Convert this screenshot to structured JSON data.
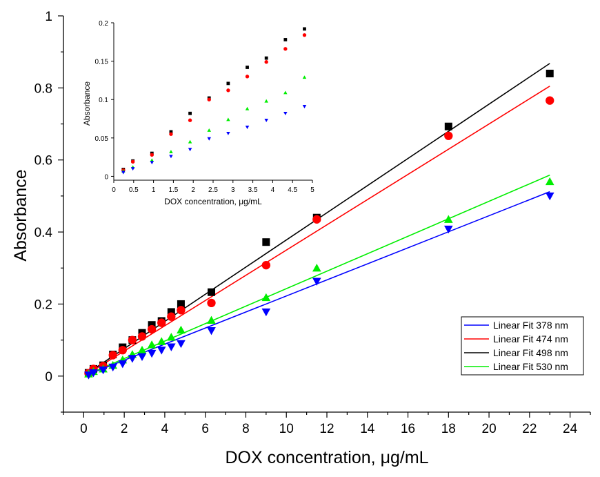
{
  "chart_data": [
    {
      "id": "main",
      "type": "scatter",
      "title": "",
      "xlabel": "DOX concentration, μg/mL",
      "ylabel": "Absorbance",
      "xlim": [
        -1,
        25
      ],
      "ylim": [
        -0.1,
        1.0
      ],
      "xticks": [
        0,
        2,
        4,
        6,
        8,
        10,
        12,
        14,
        16,
        18,
        20,
        22,
        24
      ],
      "xtick_labels": [
        "0",
        "2",
        "4",
        "6",
        "8",
        "10",
        "12",
        "14",
        "16",
        "18",
        "20",
        "22",
        "24"
      ],
      "yticks": [
        0,
        0.2,
        0.4,
        0.6,
        0.8,
        1.0
      ],
      "ytick_labels": [
        "0",
        "0.2",
        "0.4",
        "0.6",
        "0.8",
        "1"
      ],
      "grid": false,
      "legend_position": "lower-right",
      "x": [
        0.24,
        0.48,
        0.96,
        1.44,
        1.92,
        2.4,
        2.88,
        3.36,
        3.84,
        4.32,
        4.8,
        6.3,
        9.0,
        11.5,
        18.0,
        23.0
      ],
      "series": [
        {
          "name": "498 nm",
          "marker": "square",
          "color": "#000000",
          "values": [
            0.009,
            0.02,
            0.03,
            0.06,
            0.08,
            0.1,
            0.12,
            0.142,
            0.153,
            0.178,
            0.2,
            0.233,
            0.372,
            0.44,
            0.693,
            0.84
          ]
        },
        {
          "name": "474 nm",
          "marker": "circle",
          "color": "#ff0000",
          "values": [
            0.008,
            0.02,
            0.028,
            0.058,
            0.072,
            0.1,
            0.11,
            0.13,
            0.148,
            0.165,
            0.183,
            0.203,
            0.308,
            0.435,
            0.667,
            0.765
          ]
        },
        {
          "name": "530 nm",
          "marker": "triangle-up",
          "color": "#00ee00",
          "values": [
            0.006,
            0.013,
            0.02,
            0.03,
            0.045,
            0.06,
            0.072,
            0.087,
            0.096,
            0.108,
            0.128,
            0.155,
            0.218,
            0.3,
            0.435,
            0.54
          ]
        },
        {
          "name": "378 nm",
          "marker": "triangle-down",
          "color": "#0000ff",
          "values": [
            0.003,
            0.009,
            0.017,
            0.025,
            0.034,
            0.049,
            0.054,
            0.063,
            0.072,
            0.081,
            0.09,
            0.126,
            0.178,
            0.263,
            0.408,
            0.5
          ]
        }
      ],
      "fits": [
        {
          "name": "Linear Fit 378 nm",
          "color": "#0000ff",
          "x": [
            0.24,
            23.0
          ],
          "y": [
            0.005,
            0.512
          ]
        },
        {
          "name": "Linear Fit 474 nm",
          "color": "#ff0000",
          "x": [
            0.24,
            23.0
          ],
          "y": [
            0.008,
            0.805
          ]
        },
        {
          "name": "Linear Fit 498 nm",
          "color": "#000000",
          "x": [
            0.24,
            23.0
          ],
          "y": [
            0.01,
            0.868
          ]
        },
        {
          "name": "Linear Fit 530 nm",
          "color": "#00ee00",
          "x": [
            0.24,
            23.0
          ],
          "y": [
            0.006,
            0.558
          ]
        }
      ]
    },
    {
      "id": "inset",
      "type": "scatter",
      "title": "",
      "xlabel": "DOX concentration, μg/mL",
      "ylabel": "Absorbance",
      "xlim": [
        0,
        5
      ],
      "ylim": [
        -0.005,
        0.2
      ],
      "xticks": [
        0,
        0.5,
        1,
        1.5,
        2,
        2.5,
        3,
        3.5,
        4,
        4.5,
        5
      ],
      "xtick_labels": [
        "0",
        "0.5",
        "1",
        "1.5",
        "2",
        "2.5",
        "3",
        "3.5",
        "4",
        "4.5",
        "5"
      ],
      "yticks": [
        0,
        0.05,
        0.1,
        0.15,
        0.2
      ],
      "ytick_labels": [
        "0",
        "0.05",
        "0.1",
        "0.15",
        "0.2"
      ],
      "grid": false,
      "x": [
        0.24,
        0.48,
        0.96,
        1.44,
        1.92,
        2.4,
        2.88,
        3.36,
        3.84,
        4.32,
        4.8
      ],
      "series": [
        {
          "name": "498 nm",
          "marker": "square",
          "color": "#000000",
          "values": [
            0.009,
            0.02,
            0.03,
            0.058,
            0.082,
            0.102,
            0.121,
            0.142,
            0.154,
            0.178,
            0.192
          ]
        },
        {
          "name": "474 nm",
          "marker": "circle",
          "color": "#ff0000",
          "values": [
            0.008,
            0.019,
            0.028,
            0.055,
            0.073,
            0.1,
            0.112,
            0.13,
            0.149,
            0.166,
            0.184
          ]
        },
        {
          "name": "530 nm",
          "marker": "triangle-up",
          "color": "#00ee00",
          "values": [
            0.007,
            0.012,
            0.021,
            0.032,
            0.045,
            0.06,
            0.074,
            0.088,
            0.098,
            0.109,
            0.129
          ]
        },
        {
          "name": "378 nm",
          "marker": "triangle-down",
          "color": "#0000ff",
          "values": [
            0.005,
            0.01,
            0.018,
            0.026,
            0.035,
            0.049,
            0.056,
            0.064,
            0.073,
            0.082,
            0.091
          ]
        }
      ]
    }
  ],
  "legend": [
    {
      "label": "Linear Fit 378 nm",
      "color": "#0000ff"
    },
    {
      "label": "Linear Fit 474 nm",
      "color": "#ff0000"
    },
    {
      "label": "Linear Fit 498 nm",
      "color": "#000000"
    },
    {
      "label": "Linear Fit 530 nm",
      "color": "#00ee00"
    }
  ]
}
